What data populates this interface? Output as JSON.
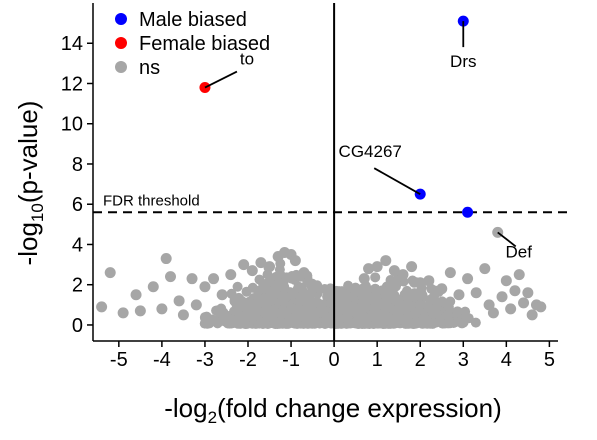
{
  "chart_data": {
    "type": "scatter",
    "xlabel_prefix": "-log",
    "xlabel_sub": "2",
    "xlabel_suffix": "(fold change expression)",
    "ylabel_prefix": "-log",
    "ylabel_sub": "10",
    "ylabel_suffix": "(p-value)",
    "xlim": [
      -5.6,
      5.2
    ],
    "ylim": [
      -0.3,
      16
    ],
    "x_ticks": [
      -5,
      -4,
      -3,
      -2,
      -1,
      0,
      1,
      2,
      3,
      4,
      5
    ],
    "x_tick_labels": [
      "-5",
      "-4",
      "-3",
      "-2",
      "-1",
      "0",
      "1",
      "2",
      "3",
      "4",
      "5"
    ],
    "y_ticks": [
      0,
      2,
      4,
      6,
      8,
      10,
      12,
      14
    ],
    "y_tick_labels": [
      "0",
      "2",
      "4",
      "6",
      "8",
      "10",
      "12",
      "14"
    ],
    "grid": false,
    "legend_position": "top-left",
    "threshold": {
      "y": 5.6,
      "label": "FDR threshold",
      "style": "dashed"
    },
    "series": [
      {
        "name": "Male biased",
        "color": "#0000ff",
        "points": [
          {
            "x": 3.0,
            "y": 15.1,
            "label": "Drs"
          },
          {
            "x": 2.0,
            "y": 6.5,
            "label": "CG4267"
          },
          {
            "x": 3.1,
            "y": 5.6,
            "label": ""
          }
        ]
      },
      {
        "name": "Female biased",
        "color": "#ff0000",
        "points": [
          {
            "x": -3.0,
            "y": 11.8,
            "label": "to"
          }
        ]
      },
      {
        "name": "ns",
        "color": "#a6a6a6",
        "points": [
          {
            "x": 3.8,
            "y": 4.6,
            "label": "Def"
          },
          {
            "x": -5.4,
            "y": 0.9,
            "label": ""
          },
          {
            "x": -5.2,
            "y": 2.6,
            "label": ""
          },
          {
            "x": -4.9,
            "y": 0.6,
            "label": ""
          },
          {
            "x": -4.6,
            "y": 1.5,
            "label": ""
          },
          {
            "x": -4.5,
            "y": 0.7,
            "label": ""
          },
          {
            "x": -4.2,
            "y": 1.9,
            "label": ""
          },
          {
            "x": -4.0,
            "y": 0.8,
            "label": ""
          },
          {
            "x": -3.9,
            "y": 3.3,
            "label": ""
          },
          {
            "x": -3.8,
            "y": 2.4,
            "label": ""
          },
          {
            "x": -3.6,
            "y": 1.2,
            "label": ""
          },
          {
            "x": -3.5,
            "y": 0.5,
            "label": ""
          },
          {
            "x": -3.3,
            "y": 2.3,
            "label": ""
          },
          {
            "x": -3.2,
            "y": 1.0,
            "label": ""
          },
          {
            "x": -3.0,
            "y": 1.9,
            "label": ""
          },
          {
            "x": -2.8,
            "y": 2.3,
            "label": ""
          },
          {
            "x": -2.7,
            "y": 0.7,
            "label": ""
          },
          {
            "x": -2.6,
            "y": 1.5,
            "label": ""
          },
          {
            "x": -2.4,
            "y": 2.5,
            "label": ""
          },
          {
            "x": -2.3,
            "y": 1.2,
            "label": ""
          },
          {
            "x": -2.1,
            "y": 3.0,
            "label": ""
          },
          {
            "x": -1.9,
            "y": 2.7,
            "label": ""
          },
          {
            "x": -1.7,
            "y": 3.1,
            "label": ""
          },
          {
            "x": -1.5,
            "y": 2.9,
            "label": ""
          },
          {
            "x": -1.3,
            "y": 3.4,
            "label": ""
          },
          {
            "x": -1.15,
            "y": 3.6,
            "label": ""
          },
          {
            "x": -1.0,
            "y": 3.5,
            "label": ""
          },
          {
            "x": -0.9,
            "y": 3.2,
            "label": ""
          },
          {
            "x": -0.7,
            "y": 2.6,
            "label": ""
          },
          {
            "x": -0.5,
            "y": 1.8,
            "label": ""
          },
          {
            "x": -0.3,
            "y": 1.0,
            "label": ""
          },
          {
            "x": 0.3,
            "y": 1.0,
            "label": ""
          },
          {
            "x": 0.5,
            "y": 1.7,
            "label": ""
          },
          {
            "x": 0.7,
            "y": 2.3,
            "label": ""
          },
          {
            "x": 0.8,
            "y": 2.8,
            "label": ""
          },
          {
            "x": 1.0,
            "y": 2.9,
            "label": ""
          },
          {
            "x": 1.2,
            "y": 3.2,
            "label": ""
          },
          {
            "x": 1.4,
            "y": 2.7,
            "label": ""
          },
          {
            "x": 1.6,
            "y": 2.5,
            "label": ""
          },
          {
            "x": 1.8,
            "y": 2.9,
            "label": ""
          },
          {
            "x": 2.0,
            "y": 2.1,
            "label": ""
          },
          {
            "x": 2.2,
            "y": 2.2,
            "label": ""
          },
          {
            "x": 2.5,
            "y": 1.8,
            "label": ""
          },
          {
            "x": 2.7,
            "y": 2.6,
            "label": ""
          },
          {
            "x": 2.9,
            "y": 1.5,
            "label": ""
          },
          {
            "x": 3.1,
            "y": 2.3,
            "label": ""
          },
          {
            "x": 3.3,
            "y": 1.6,
            "label": ""
          },
          {
            "x": 3.5,
            "y": 2.8,
            "label": ""
          },
          {
            "x": 3.6,
            "y": 1.0,
            "label": ""
          },
          {
            "x": 3.7,
            "y": 0.6,
            "label": ""
          },
          {
            "x": 3.9,
            "y": 1.4,
            "label": ""
          },
          {
            "x": 4.0,
            "y": 2.2,
            "label": ""
          },
          {
            "x": 4.1,
            "y": 0.8,
            "label": ""
          },
          {
            "x": 4.2,
            "y": 1.7,
            "label": ""
          },
          {
            "x": 4.3,
            "y": 2.5,
            "label": ""
          },
          {
            "x": 4.4,
            "y": 1.1,
            "label": ""
          },
          {
            "x": 4.5,
            "y": 1.6,
            "label": ""
          },
          {
            "x": 4.6,
            "y": 0.5,
            "label": ""
          },
          {
            "x": 4.7,
            "y": 1.0,
            "label": ""
          },
          {
            "x": 4.8,
            "y": 0.9,
            "label": ""
          }
        ]
      }
    ]
  }
}
